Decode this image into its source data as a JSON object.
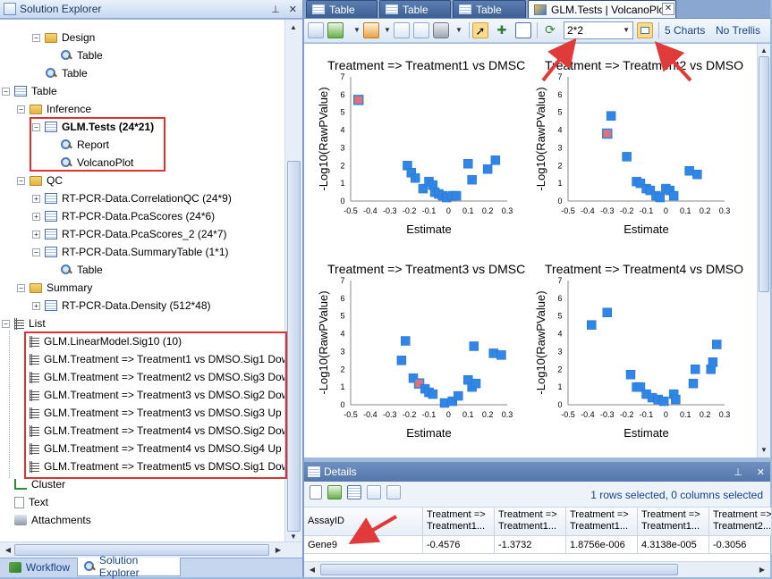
{
  "solution_explorer": {
    "title": "Solution Explorer",
    "tree": [
      {
        "label": "Design",
        "icon": "folder-icon",
        "toggle": "−",
        "indent": 2,
        "bold": false
      },
      {
        "label": "Table",
        "icon": "magnifier-icon",
        "toggle": "",
        "indent": 3,
        "bold": false
      },
      {
        "label": "Table",
        "icon": "magnifier-icon",
        "toggle": "",
        "indent": 2,
        "bold": false
      },
      {
        "label": "Table",
        "icon": "table-icon",
        "toggle": "−",
        "indent": 0,
        "bold": false
      },
      {
        "label": "Inference",
        "icon": "folder-icon",
        "toggle": "−",
        "indent": 1,
        "bold": false
      },
      {
        "label": "GLM.Tests (24*21)",
        "icon": "table-icon",
        "toggle": "−",
        "indent": 2,
        "bold": true
      },
      {
        "label": "Report",
        "icon": "magnifier-icon",
        "toggle": "",
        "indent": 3,
        "bold": false
      },
      {
        "label": "VolcanoPlot",
        "icon": "magnifier-icon",
        "toggle": "",
        "indent": 3,
        "bold": false
      },
      {
        "label": "QC",
        "icon": "folder-icon",
        "toggle": "−",
        "indent": 1,
        "bold": false
      },
      {
        "label": "RT-PCR-Data.CorrelationQC (24*9)",
        "icon": "table-icon",
        "toggle": "+",
        "indent": 2,
        "bold": false
      },
      {
        "label": "RT-PCR-Data.PcaScores (24*6)",
        "icon": "table-icon",
        "toggle": "+",
        "indent": 2,
        "bold": false
      },
      {
        "label": "RT-PCR-Data.PcaScores_2 (24*7)",
        "icon": "table-icon",
        "toggle": "+",
        "indent": 2,
        "bold": false
      },
      {
        "label": "RT-PCR-Data.SummaryTable (1*1)",
        "icon": "table-icon",
        "toggle": "−",
        "indent": 2,
        "bold": false
      },
      {
        "label": "Table",
        "icon": "magnifier-icon",
        "toggle": "",
        "indent": 3,
        "bold": false
      },
      {
        "label": "Summary",
        "icon": "folder-icon",
        "toggle": "−",
        "indent": 1,
        "bold": false
      },
      {
        "label": "RT-PCR-Data.Density (512*48)",
        "icon": "table-icon",
        "toggle": "+",
        "indent": 2,
        "bold": false
      },
      {
        "label": "List",
        "icon": "list-icon",
        "toggle": "−",
        "indent": 0,
        "bold": false
      },
      {
        "label": "GLM.LinearModel.Sig10 (10)",
        "icon": "list-icon",
        "toggle": "",
        "indent": 1,
        "bold": false
      },
      {
        "label": "GLM.Treatment => Treatment1 vs DMSO.Sig1 Down (1)",
        "icon": "list-icon",
        "toggle": "",
        "indent": 1,
        "bold": false
      },
      {
        "label": "GLM.Treatment => Treatment2 vs DMSO.Sig3 Down (3)",
        "icon": "list-icon",
        "toggle": "",
        "indent": 1,
        "bold": false
      },
      {
        "label": "GLM.Treatment => Treatment3 vs DMSO.Sig2 Down (2)",
        "icon": "list-icon",
        "toggle": "",
        "indent": 1,
        "bold": false
      },
      {
        "label": "GLM.Treatment => Treatment3 vs DMSO.Sig3 Up (3)",
        "icon": "list-icon",
        "toggle": "",
        "indent": 1,
        "bold": false
      },
      {
        "label": "GLM.Treatment => Treatment4 vs DMSO.Sig2 Down (2)",
        "icon": "list-icon",
        "toggle": "",
        "indent": 1,
        "bold": false
      },
      {
        "label": "GLM.Treatment => Treatment4 vs DMSO.Sig4 Up (4)",
        "icon": "list-icon",
        "toggle": "",
        "indent": 1,
        "bold": false
      },
      {
        "label": "GLM.Treatment => Treatment5 vs DMSO.Sig1 Down (1)",
        "icon": "list-icon",
        "toggle": "",
        "indent": 1,
        "bold": false
      },
      {
        "label": "Cluster",
        "icon": "cluster-icon",
        "toggle": "",
        "indent": 0,
        "bold": false
      },
      {
        "label": "Text",
        "icon": "text-icon",
        "toggle": "",
        "indent": 0,
        "bold": false
      },
      {
        "label": "Attachments",
        "icon": "attachment-icon",
        "toggle": "",
        "indent": 0,
        "bold": false
      }
    ],
    "bottom_tabs": [
      "Workflow",
      "Solution Explorer"
    ]
  },
  "document_tabs": [
    {
      "label": "Table",
      "active": false
    },
    {
      "label": "Table",
      "active": false
    },
    {
      "label": "Table",
      "active": false
    },
    {
      "label": "GLM.Tests | VolcanoPlot",
      "active": true
    }
  ],
  "toolbar": {
    "trellis_layout": "2*2",
    "charts_count": "5 Charts",
    "trellis_toggle": "No Trellis"
  },
  "colors": {
    "point": "#2f86e6",
    "highlighted_point": "#e0707a",
    "annotation_box": "#e03030"
  },
  "chart_data": [
    {
      "type": "scatter",
      "title": "Treatment => Treatment1 vs DMSC",
      "xlabel": "Estimate",
      "ylabel": "-Log10(RawPValue)",
      "xlim": [
        -0.5,
        0.3
      ],
      "ylim": [
        0,
        7
      ],
      "xticks": [
        "-0.5",
        "-0.4",
        "-0.3",
        "-0.2",
        "-0.1",
        "0",
        "0.1",
        "0.2",
        "0.3"
      ],
      "yticks": [
        "0",
        "1",
        "2",
        "3",
        "4",
        "5",
        "6",
        "7"
      ],
      "points": [
        [
          -0.46,
          5.7,
          1
        ],
        [
          -0.21,
          2.0,
          0
        ],
        [
          -0.19,
          1.6,
          0
        ],
        [
          -0.17,
          1.3,
          0
        ],
        [
          -0.13,
          0.7,
          0
        ],
        [
          -0.1,
          1.1,
          0
        ],
        [
          -0.08,
          0.9,
          0
        ],
        [
          -0.07,
          0.5,
          0
        ],
        [
          -0.05,
          0.4,
          0
        ],
        [
          -0.03,
          0.3,
          0
        ],
        [
          -0.01,
          0.2,
          0
        ],
        [
          0.02,
          0.3,
          0
        ],
        [
          0.04,
          0.3,
          0
        ],
        [
          0.1,
          2.1,
          0
        ],
        [
          0.12,
          1.2,
          0
        ],
        [
          0.2,
          1.8,
          0
        ],
        [
          0.24,
          2.3,
          0
        ]
      ]
    },
    {
      "type": "scatter",
      "title": "Treatment => Treatment2 vs DMSO",
      "xlabel": "Estimate",
      "ylabel": "-Log10(RawPValue)",
      "xlim": [
        -0.5,
        0.3
      ],
      "ylim": [
        0,
        7
      ],
      "xticks": [
        "-0.5",
        "-0.4",
        "-0.3",
        "-0.2",
        "-0.1",
        "0",
        "0.1",
        "0.2",
        "0.3"
      ],
      "yticks": [
        "0",
        "1",
        "2",
        "3",
        "4",
        "5",
        "6",
        "7"
      ],
      "points": [
        [
          -0.3,
          3.8,
          1
        ],
        [
          -0.28,
          4.8,
          0
        ],
        [
          -0.2,
          2.5,
          0
        ],
        [
          -0.15,
          1.1,
          0
        ],
        [
          -0.13,
          1.0,
          0
        ],
        [
          -0.1,
          0.7,
          0
        ],
        [
          -0.08,
          0.6,
          0
        ],
        [
          -0.05,
          0.3,
          0
        ],
        [
          -0.03,
          0.2,
          0
        ],
        [
          0.0,
          0.7,
          0
        ],
        [
          0.02,
          0.6,
          0
        ],
        [
          0.04,
          0.3,
          0
        ],
        [
          0.12,
          1.7,
          0
        ],
        [
          0.16,
          1.5,
          0
        ]
      ]
    },
    {
      "type": "scatter",
      "title": "Treatment => Treatment3 vs DMSC",
      "xlabel": "Estimate",
      "ylabel": "-Log10(RawPValue)",
      "xlim": [
        -0.5,
        0.3
      ],
      "ylim": [
        0,
        7
      ],
      "xticks": [
        "-0.5",
        "-0.4",
        "-0.3",
        "-0.2",
        "-0.1",
        "0",
        "0.1",
        "0.2",
        "0.3"
      ],
      "yticks": [
        "0",
        "1",
        "2",
        "3",
        "4",
        "5",
        "6",
        "7"
      ],
      "points": [
        [
          -0.22,
          3.6,
          0
        ],
        [
          -0.24,
          2.5,
          0
        ],
        [
          -0.18,
          1.5,
          0
        ],
        [
          -0.15,
          1.2,
          1
        ],
        [
          -0.12,
          0.9,
          0
        ],
        [
          -0.1,
          0.7,
          0
        ],
        [
          -0.08,
          0.6,
          0
        ],
        [
          -0.02,
          0.1,
          0
        ],
        [
          0.02,
          0.2,
          0
        ],
        [
          0.05,
          0.5,
          0
        ],
        [
          0.1,
          1.4,
          0
        ],
        [
          0.12,
          1.0,
          0
        ],
        [
          0.13,
          3.3,
          0
        ],
        [
          0.14,
          1.2,
          0
        ],
        [
          0.23,
          2.9,
          0
        ],
        [
          0.27,
          2.8,
          0
        ]
      ]
    },
    {
      "type": "scatter",
      "title": "Treatment => Treatment4 vs DMSO",
      "xlabel": "Estimate",
      "ylabel": "-Log10(RawPValue)",
      "xlim": [
        -0.5,
        0.3
      ],
      "ylim": [
        0,
        7
      ],
      "xticks": [
        "-0.5",
        "-0.4",
        "-0.3",
        "-0.2",
        "-0.1",
        "0",
        "0.1",
        "0.2",
        "0.3"
      ],
      "yticks": [
        "0",
        "1",
        "2",
        "3",
        "4",
        "5",
        "6",
        "7"
      ],
      "points": [
        [
          -0.38,
          4.5,
          0
        ],
        [
          -0.3,
          5.2,
          0
        ],
        [
          -0.18,
          1.7,
          0
        ],
        [
          -0.15,
          1.0,
          0
        ],
        [
          -0.13,
          1.0,
          0
        ],
        [
          -0.1,
          0.6,
          0
        ],
        [
          -0.07,
          0.4,
          0
        ],
        [
          -0.04,
          0.3,
          0
        ],
        [
          -0.01,
          0.2,
          0
        ],
        [
          0.04,
          0.6,
          0
        ],
        [
          0.05,
          0.3,
          0
        ],
        [
          0.14,
          1.2,
          0
        ],
        [
          0.15,
          2.0,
          0
        ],
        [
          0.23,
          2.0,
          0
        ],
        [
          0.24,
          2.4,
          0
        ],
        [
          0.26,
          3.4,
          0
        ]
      ]
    }
  ],
  "details": {
    "title": "Details",
    "selection_status": "1 rows selected, 0 columns selected",
    "columns": [
      {
        "line1": "AssayID",
        "line2": ""
      },
      {
        "line1": "Treatment =>",
        "line2": "Treatment1..."
      },
      {
        "line1": "Treatment =>",
        "line2": "Treatment1..."
      },
      {
        "line1": "Treatment =>",
        "line2": "Treatment1..."
      },
      {
        "line1": "Treatment =>",
        "line2": "Treatment1..."
      },
      {
        "line1": "Treatment =>",
        "line2": "Treatment2..."
      }
    ],
    "rows": [
      [
        "Gene9",
        "-0.4576",
        "-1.3732",
        "1.8756e-006",
        "4.3138e-005",
        "-0.3056"
      ]
    ]
  }
}
